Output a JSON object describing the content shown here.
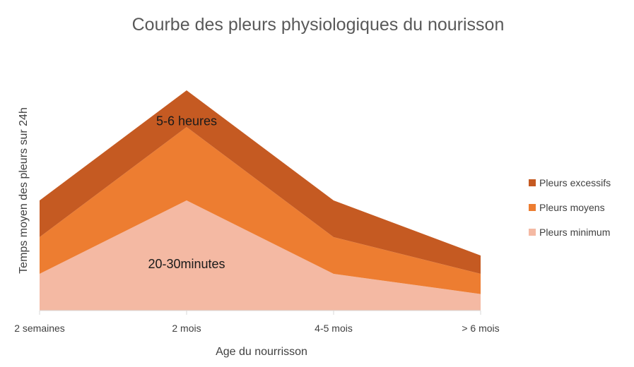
{
  "chart_data": {
    "type": "area",
    "stacked": true,
    "title": "Courbe des pleurs physiologiques du nourisson",
    "xlabel": "Age du nourrisson",
    "ylabel": "Temps moyen des pleurs sur 24h",
    "categories": [
      "2 semaines",
      "2 mois",
      "4-5 mois",
      "> 6 mois"
    ],
    "ylim": [
      0,
      6
    ],
    "grid": false,
    "legend_position": "right",
    "series": [
      {
        "name": "Pleurs minimum",
        "values": [
          1,
          3,
          1,
          0.45
        ],
        "color": "#f4b9a3"
      },
      {
        "name": "Pleurs moyens",
        "values": [
          1,
          2,
          1,
          0.55
        ],
        "color": "#ed7d31"
      },
      {
        "name": "Pleurs excessifs",
        "values": [
          1,
          1,
          1,
          0.5
        ],
        "color": "#c55a22"
      }
    ],
    "legend_order": [
      "Pleurs excessifs",
      "Pleurs moyens",
      "Pleurs minimum"
    ],
    "annotations": [
      {
        "text": "5-6 heures",
        "category": "2 mois",
        "y": 5.05
      },
      {
        "text": "20-30minutes",
        "category": "2 mois",
        "y": 1.15
      }
    ],
    "axis_color": "#d9d9d9"
  }
}
